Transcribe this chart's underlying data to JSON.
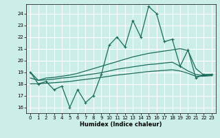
{
  "title": "",
  "xlabel": "Humidex (Indice chaleur)",
  "background_color": "#cceee8",
  "grid_color": "#ffffff",
  "line_color": "#1a6b5a",
  "xlim": [
    -0.5,
    23.5
  ],
  "ylim": [
    15.5,
    24.8
  ],
  "yticks": [
    16,
    17,
    18,
    19,
    20,
    21,
    22,
    23,
    24
  ],
  "xticks": [
    0,
    1,
    2,
    3,
    4,
    5,
    6,
    7,
    8,
    9,
    10,
    11,
    12,
    13,
    14,
    15,
    16,
    17,
    18,
    19,
    20,
    21,
    22,
    23
  ],
  "main_line": [
    19,
    18,
    18.2,
    17.5,
    17.8,
    16,
    17.5,
    16.4,
    17,
    18.8,
    21.3,
    22,
    21.15,
    23.4,
    22,
    24.6,
    24.0,
    21.6,
    21.8,
    19.5,
    20.9,
    18.5,
    18.8,
    18.8
  ],
  "upper_line": [
    19.0,
    18.3,
    18.5,
    18.55,
    18.65,
    18.75,
    18.9,
    19.1,
    19.3,
    19.5,
    19.7,
    19.9,
    20.1,
    20.3,
    20.45,
    20.6,
    20.7,
    20.8,
    20.9,
    21.0,
    20.85,
    19.3,
    18.75,
    18.8
  ],
  "mid_line": [
    18.5,
    18.3,
    18.35,
    18.4,
    18.5,
    18.55,
    18.65,
    18.75,
    18.85,
    18.95,
    19.1,
    19.25,
    19.35,
    19.45,
    19.55,
    19.65,
    19.7,
    19.78,
    19.85,
    19.5,
    19.1,
    18.8,
    18.7,
    18.75
  ],
  "lower_line": [
    18.0,
    18.0,
    18.05,
    18.1,
    18.15,
    18.2,
    18.3,
    18.38,
    18.46,
    18.55,
    18.65,
    18.75,
    18.82,
    18.9,
    18.97,
    19.05,
    19.1,
    19.15,
    19.2,
    19.1,
    18.9,
    18.65,
    18.65,
    18.7
  ]
}
